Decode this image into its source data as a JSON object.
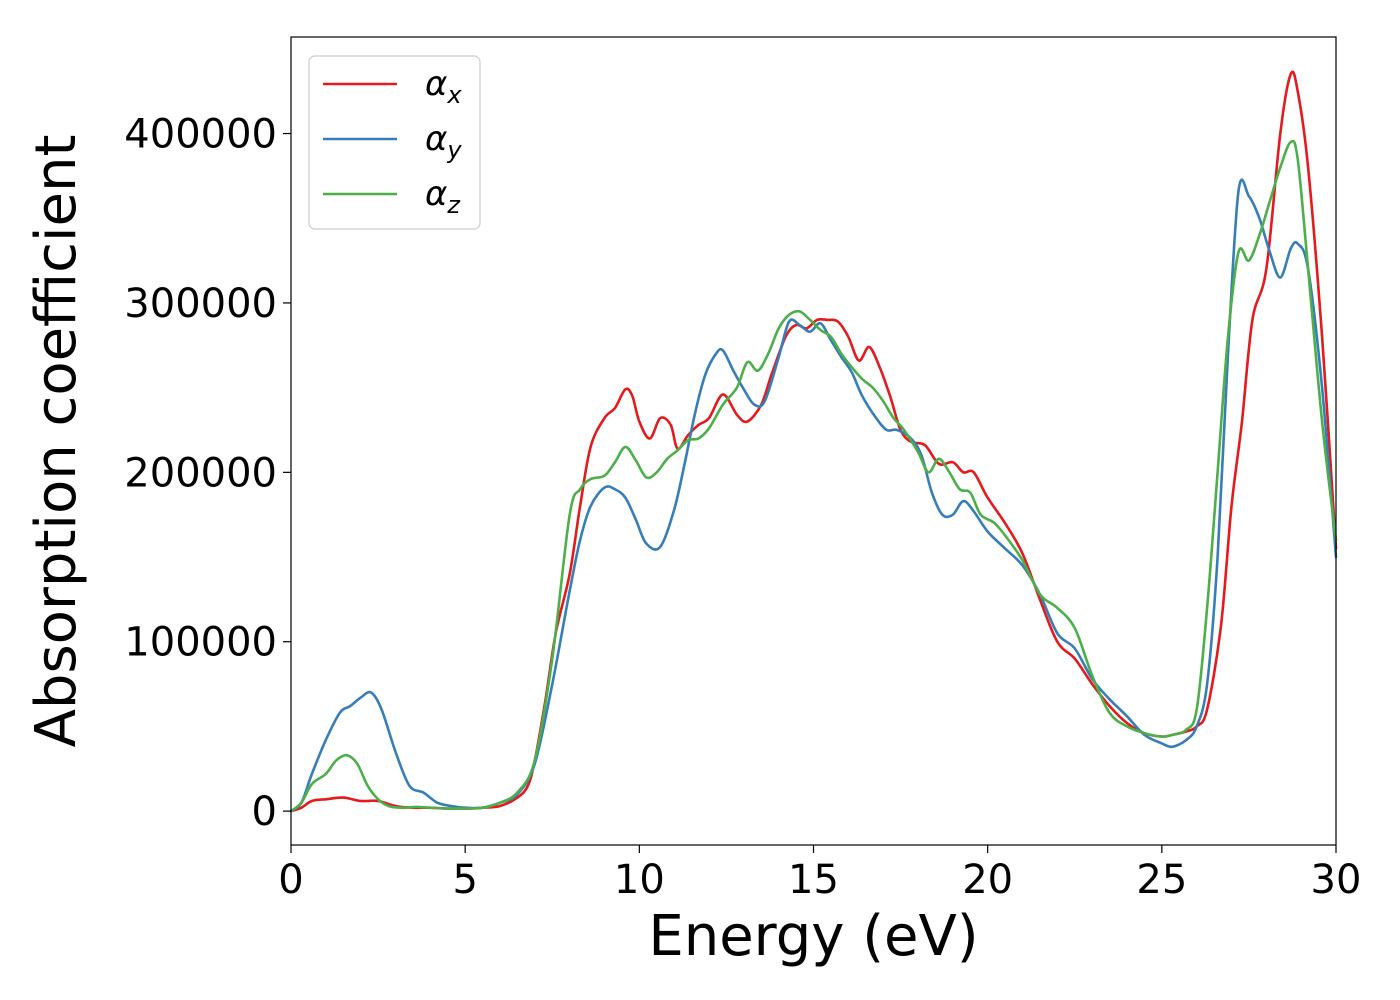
{
  "chart_data": {
    "type": "line",
    "xlabel": "Energy (eV)",
    "ylabel": "Absorption coefficient",
    "xlim": [
      0,
      30
    ],
    "ylim": [
      -20000,
      457000
    ],
    "xticks": [
      0,
      5,
      10,
      15,
      20,
      25,
      30
    ],
    "xtick_labels": [
      "0",
      "5",
      "10",
      "15",
      "20",
      "25",
      "30"
    ],
    "yticks": [
      0,
      100000,
      200000,
      300000,
      400000
    ],
    "ytick_labels": [
      "0",
      "100000",
      "200000",
      "300000",
      "400000"
    ],
    "grid": false,
    "legend_position": "top-left",
    "series": [
      {
        "name": "αx",
        "legend_base": "α",
        "legend_sub": "x",
        "color": "#e41a1c",
        "x": [
          0,
          0.3,
          0.6,
          1.0,
          1.5,
          2.0,
          2.5,
          3.0,
          3.5,
          4.0,
          4.5,
          5.0,
          5.5,
          6.0,
          6.5,
          6.8,
          7.0,
          7.3,
          7.6,
          8.0,
          8.3,
          8.6,
          9.0,
          9.3,
          9.6,
          9.8,
          10.0,
          10.3,
          10.6,
          10.9,
          11.1,
          11.4,
          11.7,
          12.0,
          12.4,
          12.8,
          13.1,
          13.5,
          13.8,
          14.2,
          14.5,
          14.8,
          15.1,
          15.4,
          15.7,
          16.0,
          16.3,
          16.6,
          16.9,
          17.2,
          17.5,
          17.8,
          18.2,
          18.6,
          19.0,
          19.3,
          19.6,
          20.0,
          20.5,
          21.0,
          21.5,
          22.0,
          22.5,
          23.0,
          23.5,
          24.0,
          24.5,
          25.0,
          25.3,
          25.7,
          26.0,
          26.3,
          26.7,
          27.0,
          27.3,
          27.6,
          28.0,
          28.4,
          28.7,
          28.9,
          29.2,
          29.6,
          30.0
        ],
        "y": [
          0,
          2000,
          6000,
          7000,
          8000,
          6000,
          6000,
          3000,
          2000,
          2000,
          1500,
          1500,
          2000,
          3000,
          8000,
          15000,
          30000,
          65000,
          105000,
          140000,
          180000,
          215000,
          232000,
          238000,
          249000,
          245000,
          230000,
          220000,
          232000,
          228000,
          214000,
          222000,
          228000,
          232000,
          246000,
          234000,
          230000,
          240000,
          258000,
          280000,
          287000,
          285000,
          290000,
          290000,
          289000,
          280000,
          266000,
          274000,
          262000,
          245000,
          225000,
          218000,
          216000,
          205000,
          206000,
          200000,
          200000,
          185000,
          170000,
          152000,
          125000,
          100000,
          90000,
          75000,
          62000,
          52000,
          46000,
          44000,
          45000,
          47000,
          50000,
          60000,
          110000,
          180000,
          230000,
          290000,
          320000,
          400000,
          435000,
          425000,
          380000,
          280000,
          155000
        ]
      },
      {
        "name": "αy",
        "legend_base": "α",
        "legend_sub": "y",
        "color": "#377eb8",
        "x": [
          0,
          0.3,
          0.6,
          1.0,
          1.4,
          1.7,
          2.0,
          2.3,
          2.6,
          3.0,
          3.4,
          3.8,
          4.2,
          4.6,
          5.0,
          5.5,
          6.0,
          6.5,
          7.0,
          7.5,
          8.0,
          8.3,
          8.6,
          9.0,
          9.3,
          9.6,
          9.9,
          10.2,
          10.6,
          11.0,
          11.3,
          11.6,
          11.9,
          12.2,
          12.4,
          12.7,
          13.0,
          13.3,
          13.6,
          14.0,
          14.3,
          14.6,
          14.9,
          15.2,
          15.5,
          15.8,
          16.1,
          16.4,
          16.8,
          17.1,
          17.4,
          17.8,
          18.1,
          18.4,
          18.7,
          19.0,
          19.3,
          19.6,
          20.0,
          20.5,
          21.0,
          21.5,
          22.0,
          22.5,
          23.0,
          23.5,
          24.0,
          24.5,
          25.0,
          25.3,
          25.7,
          26.0,
          26.3,
          26.6,
          26.9,
          27.2,
          27.5,
          27.8,
          28.1,
          28.4,
          28.7,
          28.9,
          29.2,
          29.6,
          30.0
        ],
        "y": [
          0,
          5000,
          22000,
          42000,
          58000,
          62000,
          67000,
          70000,
          60000,
          35000,
          15000,
          11000,
          5000,
          3000,
          2000,
          2000,
          5000,
          10000,
          28000,
          75000,
          130000,
          160000,
          180000,
          191000,
          190000,
          185000,
          172000,
          158000,
          156000,
          178000,
          205000,
          235000,
          258000,
          270000,
          272000,
          260000,
          249000,
          240000,
          242000,
          268000,
          289000,
          287000,
          283000,
          288000,
          278000,
          268000,
          259000,
          245000,
          232000,
          225000,
          225000,
          220000,
          210000,
          188000,
          175000,
          175000,
          183000,
          177000,
          165000,
          155000,
          145000,
          128000,
          105000,
          96000,
          78000,
          66000,
          56000,
          45000,
          40000,
          38000,
          42000,
          50000,
          75000,
          150000,
          270000,
          366000,
          363000,
          350000,
          330000,
          315000,
          332000,
          335000,
          320000,
          250000,
          150000
        ]
      },
      {
        "name": "αz",
        "legend_base": "α",
        "legend_sub": "z",
        "color": "#4daf4a",
        "x": [
          0,
          0.3,
          0.6,
          1.0,
          1.3,
          1.6,
          1.9,
          2.2,
          2.5,
          2.8,
          3.2,
          3.6,
          4.0,
          4.5,
          5.0,
          5.5,
          6.0,
          6.5,
          7.0,
          7.5,
          8.0,
          8.3,
          8.6,
          9.0,
          9.3,
          9.6,
          9.9,
          10.2,
          10.5,
          10.8,
          11.1,
          11.4,
          11.7,
          12.0,
          12.4,
          12.8,
          13.1,
          13.4,
          13.7,
          14.0,
          14.3,
          14.6,
          14.9,
          15.2,
          15.5,
          15.8,
          16.1,
          16.4,
          16.7,
          17.0,
          17.3,
          17.6,
          18.0,
          18.3,
          18.6,
          18.9,
          19.2,
          19.5,
          19.8,
          20.2,
          20.6,
          21.0,
          21.5,
          22.0,
          22.5,
          23.0,
          23.5,
          24.0,
          24.5,
          25.0,
          25.3,
          25.7,
          26.0,
          26.3,
          26.6,
          26.9,
          27.2,
          27.5,
          27.8,
          28.1,
          28.4,
          28.7,
          28.9,
          29.2,
          29.6,
          30.0
        ],
        "y": [
          0,
          5000,
          16000,
          22000,
          30000,
          33000,
          28000,
          15000,
          7000,
          3000,
          2000,
          2500,
          2000,
          1500,
          1500,
          2000,
          5000,
          11000,
          30000,
          90000,
          175000,
          190000,
          196000,
          198000,
          206000,
          215000,
          207000,
          197000,
          200000,
          208000,
          213000,
          219000,
          220000,
          226000,
          240000,
          250000,
          265000,
          260000,
          270000,
          285000,
          293000,
          295000,
          290000,
          284000,
          280000,
          270000,
          262000,
          255000,
          250000,
          242000,
          232000,
          225000,
          212000,
          200000,
          208000,
          200000,
          190000,
          188000,
          175000,
          170000,
          160000,
          148000,
          128000,
          120000,
          108000,
          80000,
          58000,
          50000,
          46000,
          44000,
          45000,
          48000,
          60000,
          120000,
          200000,
          280000,
          330000,
          325000,
          340000,
          360000,
          380000,
          395000,
          385000,
          320000,
          230000,
          160000
        ]
      }
    ]
  }
}
